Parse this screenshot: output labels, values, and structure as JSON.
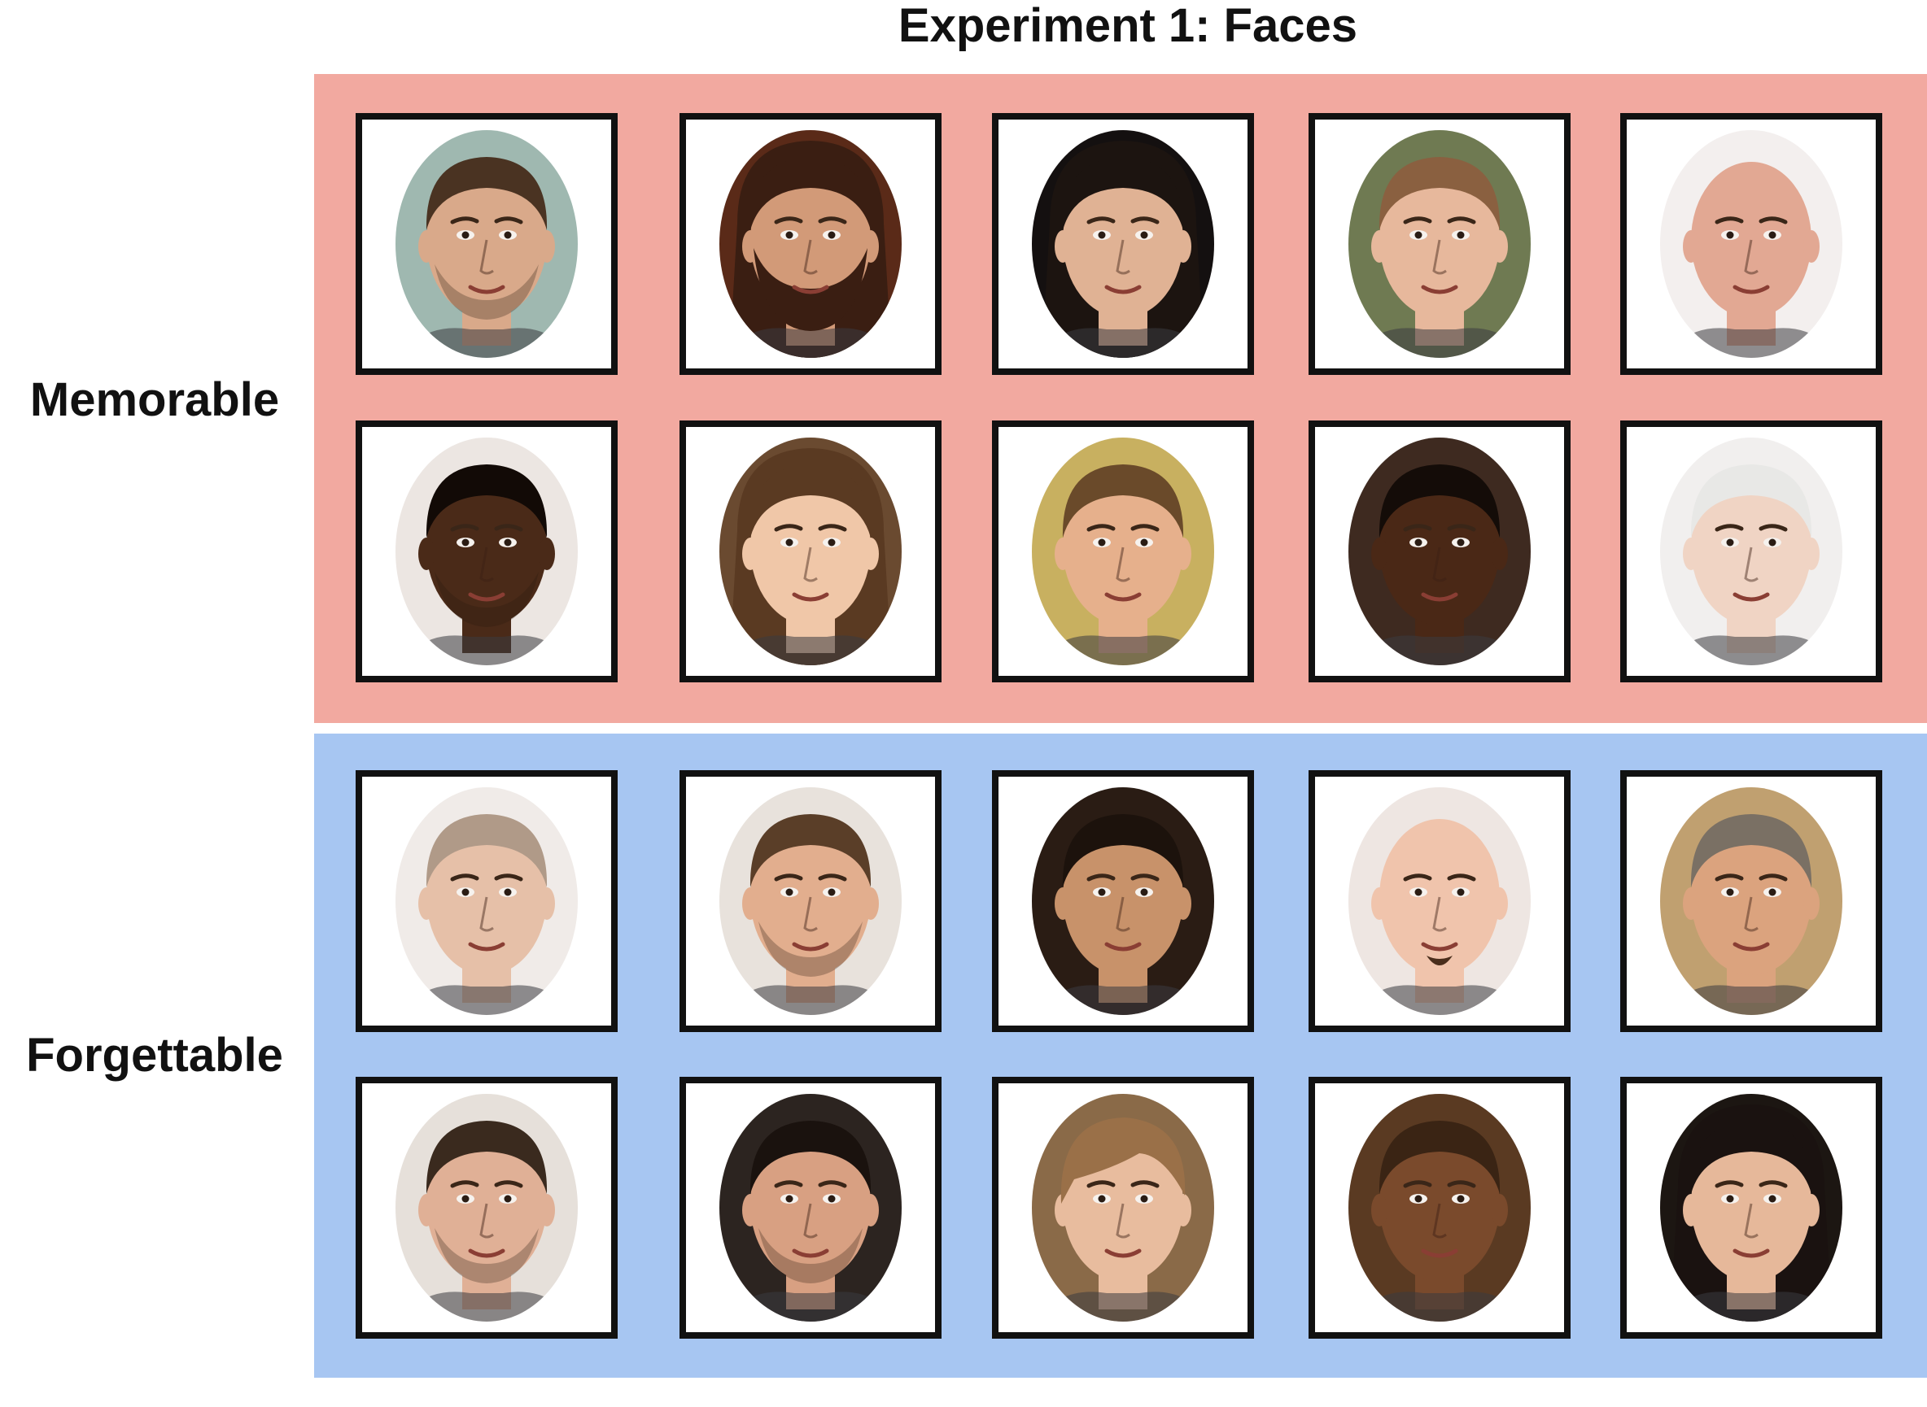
{
  "title": "Experiment 1: Faces",
  "colors": {
    "memorable_panel": "#f2a9a0",
    "forgettable_panel": "#a7c6f2",
    "frame": "#111111",
    "text": "#111111"
  },
  "groups": [
    {
      "label": "Memorable",
      "faces": [
        {
          "skin": "#d9a98a",
          "hair": "#4a3322",
          "hair_style": "short",
          "beard": "stubble",
          "bg": "#9fb8b0"
        },
        {
          "skin": "#d29a78",
          "hair": "#3a1e12",
          "hair_style": "long",
          "beard": "full",
          "bg": "#5a2a18"
        },
        {
          "skin": "#e0b294",
          "hair": "#1c1410",
          "hair_style": "long",
          "beard": "none",
          "bg": "#141010"
        },
        {
          "skin": "#e7b89c",
          "hair": "#8a6040",
          "hair_style": "back",
          "beard": "none",
          "bg": "#6f7a52"
        },
        {
          "skin": "#e2a893",
          "hair": "none",
          "hair_style": "bald",
          "beard": "none",
          "bg": "#f3efee"
        },
        {
          "skin": "#4a2a18",
          "hair": "#120a06",
          "hair_style": "short",
          "beard": "stubble",
          "bg": "#ece6e2"
        },
        {
          "skin": "#f0c7a8",
          "hair": "#5a3a22",
          "hair_style": "long",
          "beard": "none",
          "bg": "#6a4a30"
        },
        {
          "skin": "#e6b08c",
          "hair": "#6a4a2a",
          "hair_style": "short",
          "beard": "none",
          "bg": "#c8b060"
        },
        {
          "skin": "#4a2816",
          "hair": "#140c08",
          "hair_style": "short",
          "beard": "none",
          "bg": "#3e2a20"
        },
        {
          "skin": "#f0d4c4",
          "hair": "#e8e8e6",
          "hair_style": "short",
          "beard": "none",
          "bg": "#f1efee"
        }
      ]
    },
    {
      "label": "Forgettable",
      "faces": [
        {
          "skin": "#e6c0a8",
          "hair": "#b09a88",
          "hair_style": "short",
          "beard": "none",
          "bg": "#f0ebe8"
        },
        {
          "skin": "#e2ae8e",
          "hair": "#5a3e28",
          "hair_style": "short",
          "beard": "stubble",
          "bg": "#e8e2dc"
        },
        {
          "skin": "#c8926a",
          "hair": "#1c120c",
          "hair_style": "back",
          "beard": "none",
          "bg": "#2a1c14"
        },
        {
          "skin": "#f0c4ac",
          "hair": "none",
          "hair_style": "bald",
          "beard": "goatee",
          "bg": "#eee6e2"
        },
        {
          "skin": "#dba37e",
          "hair": "#7a7064",
          "hair_style": "short",
          "beard": "none",
          "bg": "#c0a070"
        },
        {
          "skin": "#e0b096",
          "hair": "#3a2a1e",
          "hair_style": "short",
          "beard": "stubble",
          "bg": "#e6e0da"
        },
        {
          "skin": "#d8a082",
          "hair": "#1a120e",
          "hair_style": "short",
          "beard": "stubble",
          "bg": "#2c2420"
        },
        {
          "skin": "#e8bc9e",
          "hair": "#9a7048",
          "hair_style": "fringe",
          "beard": "none",
          "bg": "#8a6a48"
        },
        {
          "skin": "#7a4a2c",
          "hair": "#3a2414",
          "hair_style": "short",
          "beard": "none",
          "bg": "#5a3a22"
        },
        {
          "skin": "#e6b89a",
          "hair": "#1a1210",
          "hair_style": "long",
          "beard": "none",
          "bg": "#1c1612"
        }
      ]
    }
  ]
}
